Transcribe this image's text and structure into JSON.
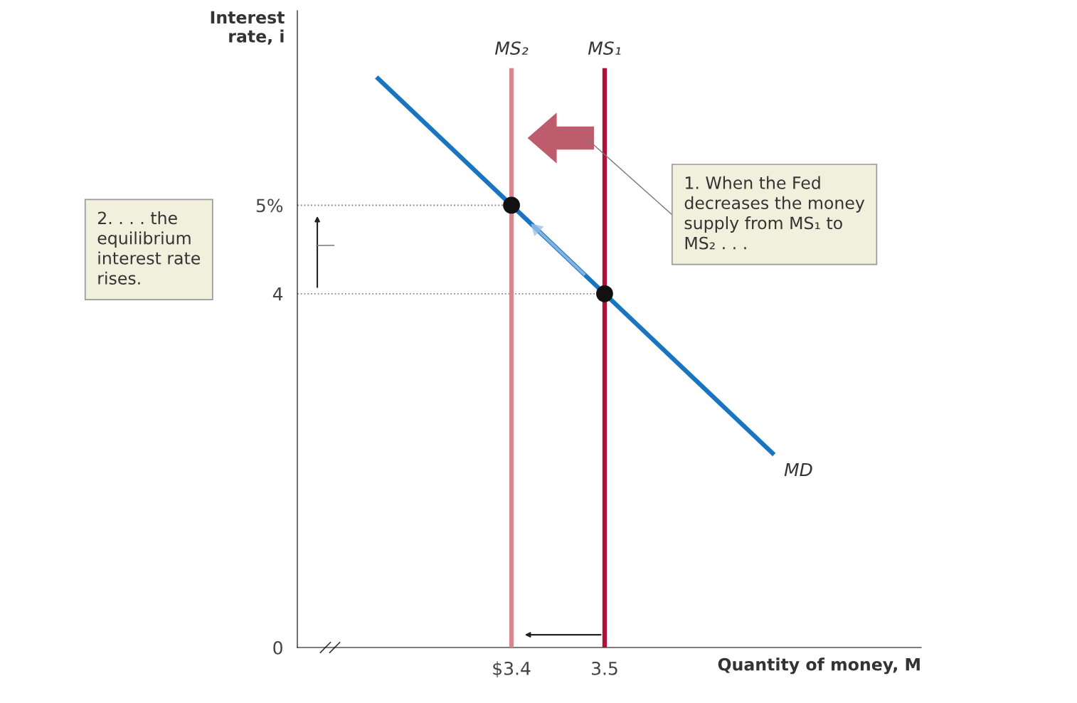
{
  "chart_data": {
    "type": "line",
    "xlabel": "Quantity of money, M",
    "ylabel": "Interest\nrate, i",
    "xlim": [
      3.17,
      3.84
    ],
    "ylim": [
      0,
      7.2
    ],
    "xticks": [
      {
        "value": 3.4,
        "label": "$3.4"
      },
      3.5
    ],
    "yticks": [
      0,
      4,
      {
        "value": 5,
        "label": "5%"
      }
    ],
    "grid": false,
    "series": [
      {
        "name": "MD",
        "color": "#1a75c0",
        "x": [
          3.255,
          3.682
        ],
        "values": [
          6.45,
          2.18
        ]
      },
      {
        "name": "MS₂",
        "color": "#d9868c",
        "x": [
          3.4,
          3.4
        ],
        "values": [
          0,
          6.55
        ]
      },
      {
        "name": "MS₁",
        "color": "#b0103a",
        "x": [
          3.5,
          3.5
        ],
        "values": [
          0,
          6.55
        ]
      },
      {
        "type": "line",
        "color": "#888888",
        "line_style": "dotted",
        "x": [
          3.17,
          3.4
        ],
        "values": [
          5,
          5
        ]
      },
      {
        "type": "line",
        "color": "#888888",
        "line_style": "dotted",
        "x": [
          3.17,
          3.5
        ],
        "values": [
          4,
          4
        ]
      },
      {
        "type": "scatter",
        "color": "#111111",
        "marker": "circle",
        "x": [
          3.4,
          3.5
        ],
        "values": [
          5,
          4
        ]
      }
    ],
    "annotations": [
      "1. When the Fed\ndecreases the money\nsupply from MS₁ to\nMS₂ . . .",
      "2. . . . the\nequilibrium\ninterest rate\nrises."
    ]
  }
}
